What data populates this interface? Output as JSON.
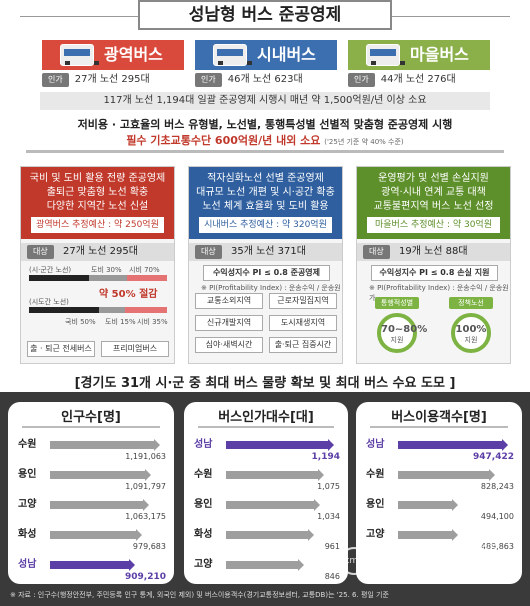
{
  "title": "성남형 버스 준공영제",
  "types": [
    {
      "label": "광역버스",
      "stat": "27개 노선 295대",
      "color": "#d94a3c"
    },
    {
      "label": "시내버스",
      "stat": "46개 노선 623대",
      "color": "#3b6fb0"
    },
    {
      "label": "마을버스",
      "stat": "44개 노선 276대",
      "color": "#8bb04a"
    }
  ],
  "tag_label": "인가",
  "summary": "117개 노선 1,194대 일괄 준공영제 시행시 매년 약 1,500억원/년 이상 소요",
  "desc1": "저비용 · 고효율의 버스 유형별, 노선별, 통행특성별 선별적 맞춤형 준공영제 시행",
  "desc2": "필수 기초교통수단 600억원/년 내외 소요",
  "desc2_note": "('25년 기준 약 40% 수준)",
  "target_tag": "대상",
  "cols": [
    {
      "color": "#c0392b",
      "lines": [
        "국비 및 도비 활용 전량 준공영제",
        "출퇴근 맞춤형 노선 확충",
        "다양한 지역간 노선 신설"
      ],
      "budget": "광역버스 추정예산 : 약 250억원",
      "target": "27개 노선 295대"
    },
    {
      "color": "#2f5f9e",
      "lines": [
        "적자심화노선 선별 준공영제",
        "대규모 노선 개편 및 시·공간 확충",
        "노선 체계 효율화 및 도비 활용"
      ],
      "budget": "시내버스 추정예산 : 약 320억원",
      "target": "35개 노선 371대"
    },
    {
      "color": "#5d8f2a",
      "lines": [
        "운영평가 및 선별 손실지원",
        "광역·시내 연계 교통 대책",
        "교통불편지역 버스 노선 선정"
      ],
      "budget": "마을버스 추정예산 : 약 30억원",
      "target": "19개 노선 88대"
    }
  ],
  "c1": {
    "label_a": "(시·군간 노선)",
    "doby_a": "도비 30%",
    "sigun_a": "시비 70%",
    "cut": "약 50% 절감",
    "label_b": "(시도간 노선)",
    "doby_b": "국비 50%",
    "doby_b2": "도비 15%",
    "sigun_b": "시비 35%",
    "box1": "출 · 퇴근 전세버스",
    "box2": "프리미엄버스"
  },
  "c2": {
    "rule": "수익성지수 PI ≤ 0.8 준공영제",
    "sub": "※ PI(Profitability Index) : 운송수익 / 운송원가",
    "boxes": [
      "교통소외지역",
      "근로자밀집지역",
      "신규개발지역",
      "도시재생지역",
      "심야·새벽시간",
      "출·퇴근 집중시간"
    ]
  },
  "c3": {
    "rule": "수익성지수 PI ≤ 0.8 손실 지원",
    "sub": "※ PI(Profitability Index) : 운송수익 / 운송원가",
    "tag1": "통행적성별",
    "tag2": "정책노선",
    "circ1": "70~80%",
    "circ2": "100%",
    "circ_sub": "지원"
  },
  "gyeonggi": "[경기도 31개 시·군 중 최대 버스 물량 확보 및 최대 버스 수요 도모 ]",
  "panels": [
    {
      "title": "인구수[명]",
      "rows": [
        {
          "name": "수원",
          "value": "1,191,063",
          "v": 1191063
        },
        {
          "name": "용인",
          "value": "1,091,797",
          "v": 1091797
        },
        {
          "name": "고양",
          "value": "1,063,175",
          "v": 1063175
        },
        {
          "name": "화성",
          "value": "979,683",
          "v": 979683
        },
        {
          "name": "성남",
          "value": "909,210",
          "v": 909210,
          "hl": true
        }
      ]
    },
    {
      "title": "버스인가대수[대]",
      "rows": [
        {
          "name": "성남",
          "value": "1,194",
          "v": 1194,
          "hl": true
        },
        {
          "name": "수원",
          "value": "1,075",
          "v": 1075
        },
        {
          "name": "용인",
          "value": "1,034",
          "v": 1034
        },
        {
          "name": "화성",
          "value": "961",
          "v": 961
        },
        {
          "name": "고양",
          "value": "846",
          "v": 846
        }
      ]
    },
    {
      "title": "버스이용객수[명]",
      "rows": [
        {
          "name": "성남",
          "value": "947,422",
          "v": 947422,
          "hl": true
        },
        {
          "name": "수원",
          "value": "828,243",
          "v": 828243
        },
        {
          "name": "용인",
          "value": "494,100",
          "v": 494100
        },
        {
          "name": "고양",
          "value": "489,863",
          "v": 489863
        },
        {
          "name": "",
          "value": "",
          "v": 0
        }
      ]
    }
  ],
  "note": "※ 자료 : 인구수(행정안전부, 주민등록 인구 통계, 외국인 제외) 및 버스이용객수(경기교통정보센터, 교통DB)는 '25. 6. 평일 기준",
  "watermark1": "korea media news",
  "watermark2": "케이엠 뉴스",
  "watermark_logo": "kmn"
}
